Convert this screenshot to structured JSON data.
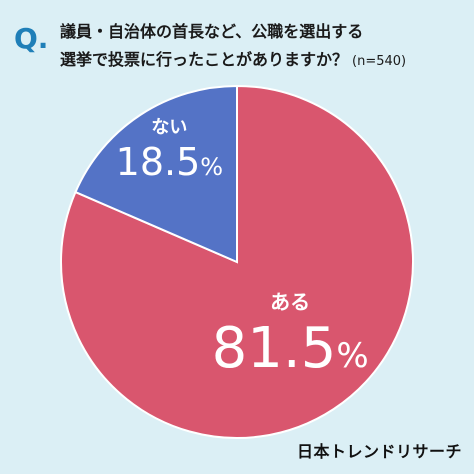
{
  "question": {
    "marker": "Q.",
    "line1": "議員・自治体の首長など、公職を選出する",
    "line2": "選挙で投票に行ったことがありますか？",
    "sample": "(n=540)"
  },
  "chart_data": {
    "type": "pie",
    "slices": [
      {
        "label": "ある",
        "value": 81.5,
        "value_text": "81.5",
        "color": "#d9566e"
      },
      {
        "label": "ない",
        "value": 18.5,
        "value_text": "18.5",
        "color": "#5473c6"
      }
    ],
    "unit": "%"
  },
  "footer": {
    "brand": "日本トレンドリサーチ"
  }
}
